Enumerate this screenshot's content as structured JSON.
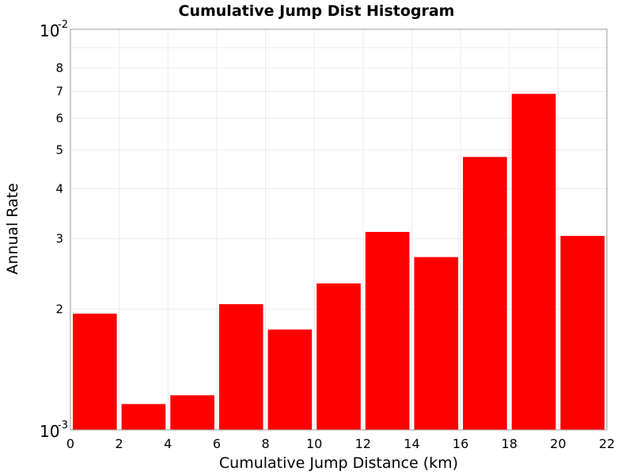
{
  "chart_data": {
    "type": "bar",
    "title": "Cumulative Jump Dist Histogram",
    "xlabel": "Cumulative Jump Distance (km)",
    "ylabel": "Annual Rate",
    "x_scale": "linear",
    "y_scale": "log",
    "xlim": [
      0,
      22
    ],
    "ylim": [
      0.001,
      0.01
    ],
    "grid": true,
    "bar_color": "#ff0000",
    "x_ticks": [
      "0",
      "2",
      "4",
      "6",
      "8",
      "10",
      "12",
      "14",
      "16",
      "18",
      "20",
      "22"
    ],
    "y_ticks": [
      "2",
      "3",
      "4",
      "5",
      "6",
      "7",
      "8"
    ],
    "y_decade_ticks": [
      {
        "base": "10",
        "exponent": "-3"
      },
      {
        "base": "10",
        "exponent": "-2"
      }
    ],
    "bins": [
      {
        "x_start": 0,
        "x_end": 2,
        "value": 0.00195
      },
      {
        "x_start": 2,
        "x_end": 4,
        "value": 0.00116
      },
      {
        "x_start": 4,
        "x_end": 6,
        "value": 0.00122
      },
      {
        "x_start": 6,
        "x_end": 8,
        "value": 0.00206
      },
      {
        "x_start": 8,
        "x_end": 10,
        "value": 0.00178
      },
      {
        "x_start": 10,
        "x_end": 12,
        "value": 0.00232
      },
      {
        "x_start": 12,
        "x_end": 14,
        "value": 0.00312
      },
      {
        "x_start": 14,
        "x_end": 16,
        "value": 0.0027
      },
      {
        "x_start": 16,
        "x_end": 18,
        "value": 0.0048
      },
      {
        "x_start": 18,
        "x_end": 20,
        "value": 0.0069
      },
      {
        "x_start": 20,
        "x_end": 22,
        "value": 0.00305
      }
    ]
  }
}
